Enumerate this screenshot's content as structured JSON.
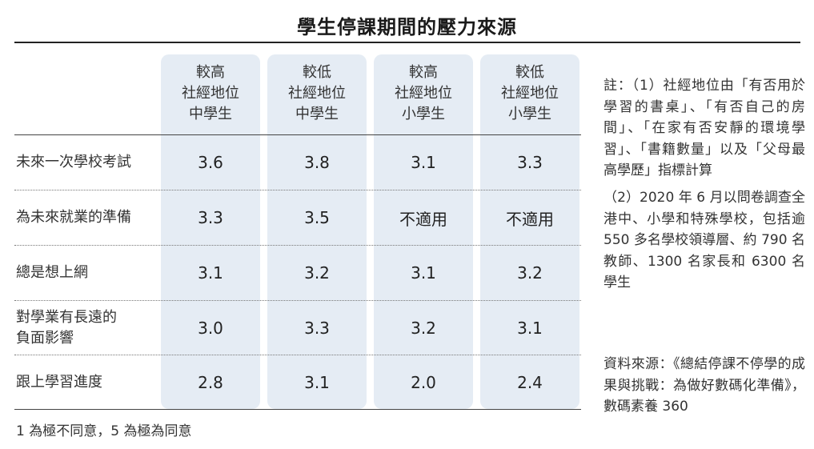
{
  "chart_data": {
    "type": "table",
    "title": "學生停課期間的壓力來源",
    "columns": [
      {
        "line1": "較高",
        "line2": "社經地位",
        "line3": "中學生"
      },
      {
        "line1": "較低",
        "line2": "社經地位",
        "line3": "中學生"
      },
      {
        "line1": "較高",
        "line2": "社經地位",
        "line3": "小學生"
      },
      {
        "line1": "較低",
        "line2": "社經地位",
        "line3": "小學生"
      }
    ],
    "rows": [
      {
        "label_line1": "未來一次學校考試",
        "label_line2": "",
        "values": [
          "3.6",
          "3.8",
          "3.1",
          "3.3"
        ]
      },
      {
        "label_line1": "為未來就業的準備",
        "label_line2": "",
        "values": [
          "3.3",
          "3.5",
          "不適用",
          "不適用"
        ]
      },
      {
        "label_line1": "總是想上網",
        "label_line2": "",
        "values": [
          "3.1",
          "3.2",
          "3.1",
          "3.2"
        ]
      },
      {
        "label_line1": "對學業有長遠的",
        "label_line2": "負面影響",
        "values": [
          "3.0",
          "3.3",
          "3.2",
          "3.1"
        ]
      },
      {
        "label_line1": "跟上學習進度",
        "label_line2": "",
        "values": [
          "2.8",
          "3.1",
          "2.0",
          "2.4"
        ]
      }
    ],
    "scale_note": "1 為極不同意，5 為極為同意"
  },
  "notes": {
    "note1": "註：（1）社經地位由「有否用於學習的書桌」、「有否自己的房間」、「在家有否安靜的環境學習」、「書籍數量」以及「父母最高學歷」指標計算",
    "note2": "（2）2020 年 6 月以問卷調查全港中、小學和特殊學校，包括逾 550 多名學校領導層、約 790 名教師、1300 名家長和 6300 名學生",
    "source": "資料來源：《總結停課不停學的成果與挑戰：為做好數碼化準備》，數碼素養 360"
  },
  "colors": {
    "column_background": "#e5ecf4",
    "text": "#222222"
  }
}
